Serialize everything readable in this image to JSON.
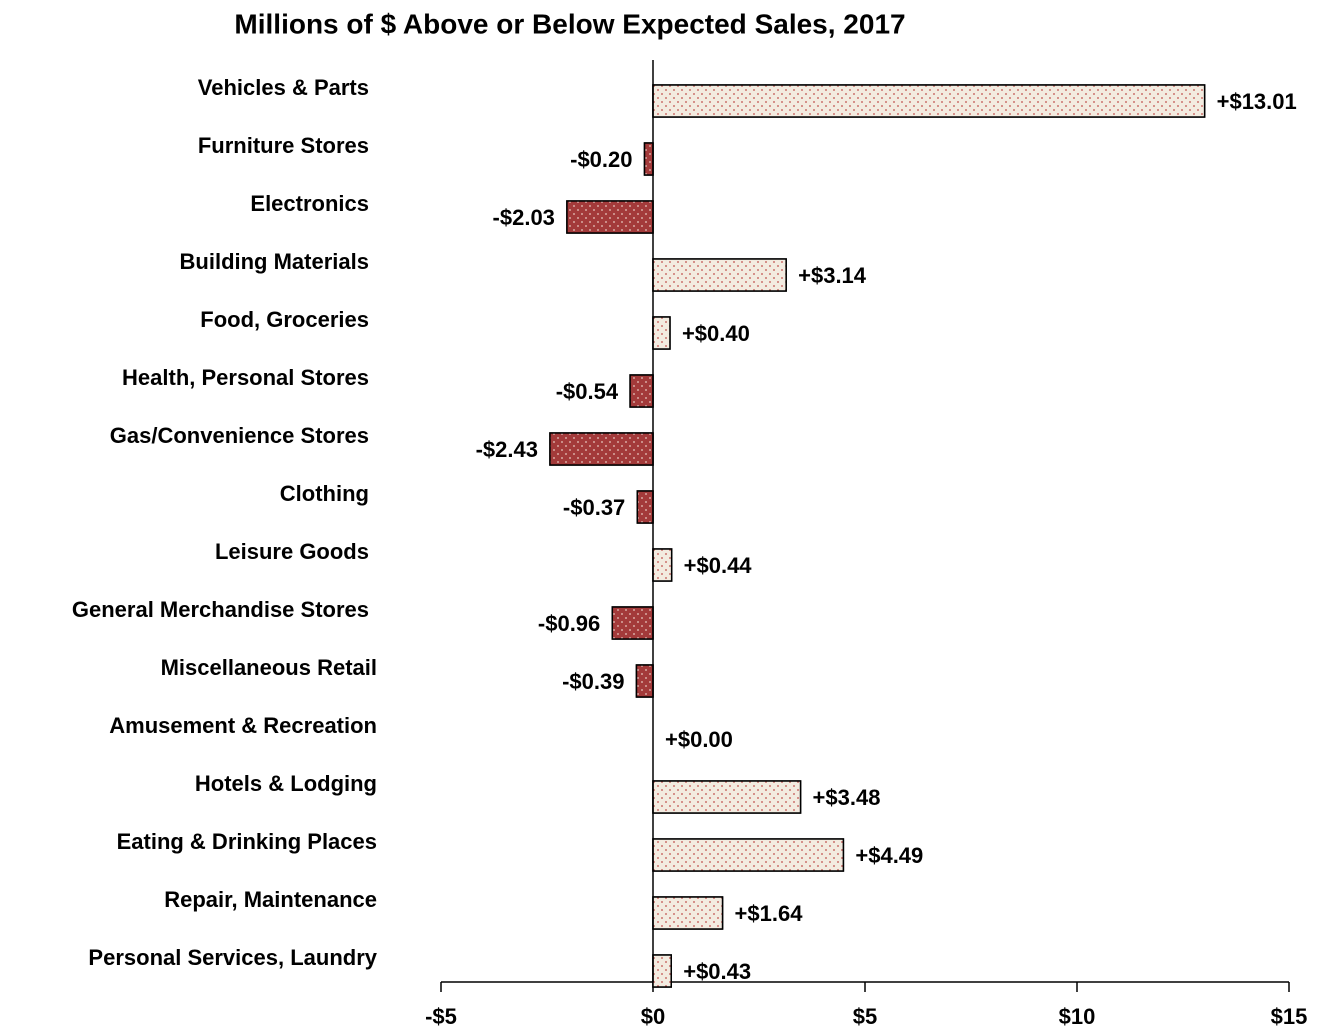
{
  "chart_data": {
    "type": "bar",
    "orientation": "horizontal",
    "title": "Millions of $ Above or Below Expected Sales, 2017",
    "categories": [
      "Vehicles & Parts",
      "Furniture Stores",
      "Electronics",
      "Building Materials",
      "Food, Groceries",
      "Health, Personal Stores",
      "Gas/Convenience Stores",
      "Clothing",
      "Leisure Goods",
      "General Merchandise Stores",
      "Miscellaneous Retail",
      "Amusement & Recreation",
      "Hotels & Lodging",
      "Eating & Drinking Places",
      "Repair, Maintenance",
      "Personal Services, Laundry"
    ],
    "values": [
      13.01,
      -0.2,
      -2.03,
      3.14,
      0.4,
      -0.54,
      -2.43,
      -0.37,
      0.44,
      -0.96,
      -0.39,
      0.0,
      3.48,
      4.49,
      1.64,
      0.43
    ],
    "value_labels": [
      "+$13.01",
      "-$0.20",
      "-$2.03",
      "+$3.14",
      "+$0.40",
      "-$0.54",
      "-$2.43",
      "-$0.37",
      "+$0.44",
      "-$0.96",
      "-$0.39",
      "+$0.00",
      "+$3.48",
      "+$4.49",
      "+$1.64",
      "+$0.43"
    ],
    "positive_color": "#f3ebe0",
    "negative_color": "#a33a3a",
    "xlim": [
      -5,
      15
    ],
    "xticks": [
      {
        "value": -5,
        "label": "-$5"
      },
      {
        "value": 0,
        "label": "$0"
      },
      {
        "value": 5,
        "label": "$5"
      },
      {
        "value": 10,
        "label": "$10"
      },
      {
        "value": 15,
        "label": "$15"
      }
    ],
    "grid": false
  }
}
